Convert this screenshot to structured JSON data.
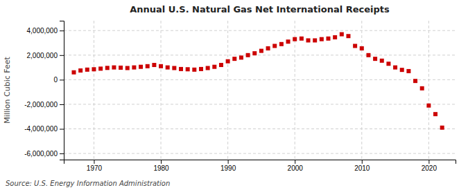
{
  "chart_data": {
    "type": "scatter",
    "title": "Annual U.S. Natural Gas Net International Receipts",
    "ylabel": "Million Cubic Feet",
    "annotations": [
      "Source: U.S. Energy Information Administration"
    ],
    "color": "#cc0000",
    "marker": "square",
    "grid": true,
    "xlim": [
      1965.5,
      2024
    ],
    "xticks": [
      1970,
      1980,
      1990,
      2000,
      2010,
      2020
    ],
    "ylim": [
      -6500000,
      4800000
    ],
    "yticks": [
      {
        "value": -6000000,
        "label": "-6,000,000"
      },
      {
        "value": -4000000,
        "label": "-4,000,000"
      },
      {
        "value": -2000000,
        "label": "-2,000,000"
      },
      0,
      {
        "value": 2000000,
        "label": "2,000,000"
      },
      {
        "value": 4000000,
        "label": "4,000,000"
      }
    ],
    "x": [
      1967,
      1968,
      1969,
      1970,
      1971,
      1972,
      1973,
      1974,
      1975,
      1976,
      1977,
      1978,
      1979,
      1980,
      1981,
      1982,
      1983,
      1984,
      1985,
      1986,
      1987,
      1988,
      1989,
      1990,
      1991,
      1992,
      1993,
      1994,
      1995,
      1996,
      1997,
      1998,
      1999,
      2000,
      2001,
      2002,
      2003,
      2004,
      2005,
      2006,
      2007,
      2008,
      2009,
      2010,
      2011,
      2012,
      2013,
      2014,
      2015,
      2016,
      2017,
      2018,
      2019,
      2020,
      2021,
      2022
    ],
    "values": [
      600000,
      750000,
      820000,
      850000,
      900000,
      960000,
      1000000,
      980000,
      950000,
      1000000,
      1050000,
      1100000,
      1200000,
      1100000,
      1000000,
      950000,
      870000,
      850000,
      820000,
      870000,
      950000,
      1050000,
      1200000,
      1500000,
      1700000,
      1800000,
      2000000,
      2150000,
      2350000,
      2550000,
      2750000,
      2900000,
      3100000,
      3300000,
      3350000,
      3200000,
      3200000,
      3300000,
      3350000,
      3450000,
      3700000,
      3550000,
      2750000,
      2550000,
      2000000,
      1700000,
      1550000,
      1300000,
      1000000,
      800000,
      700000,
      -100000,
      -700000,
      -2100000,
      -2800000,
      -3900000
    ]
  }
}
